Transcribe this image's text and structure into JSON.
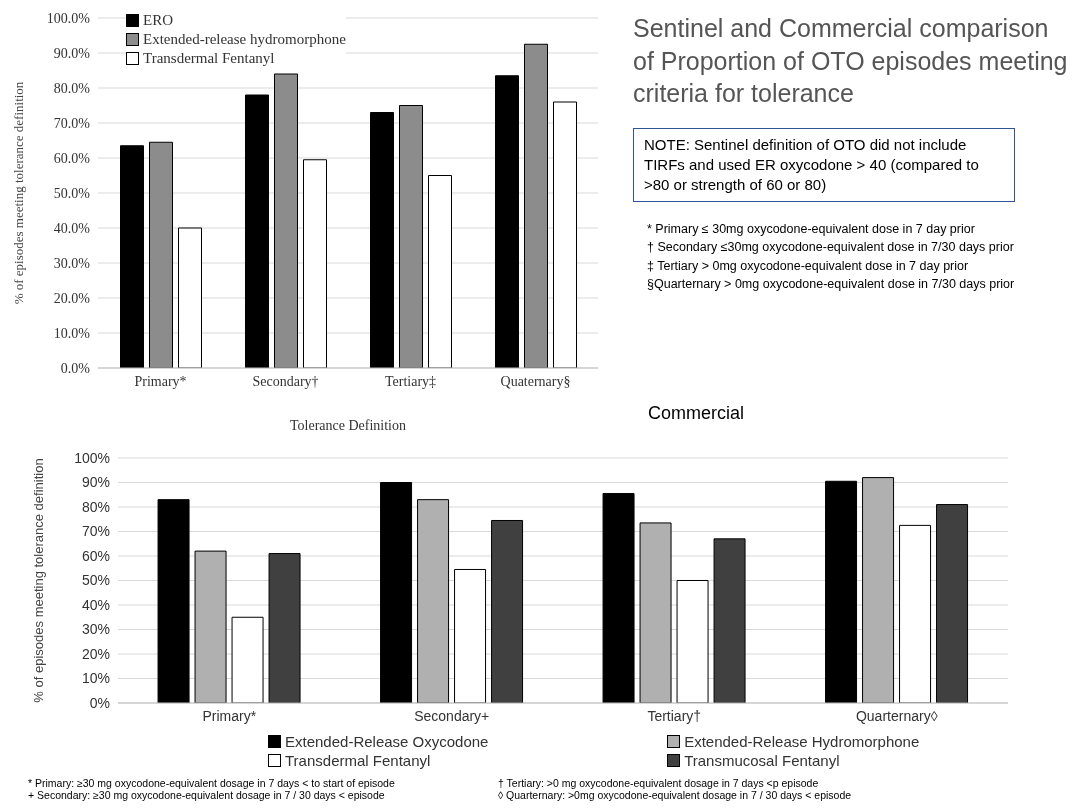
{
  "chart_data": [
    {
      "type": "bar",
      "xlabel": "Tolerance Definition",
      "ylabel": "% of episodes meeting tolerance definition",
      "categories": [
        "Primary*",
        "Secondary†",
        "Tertiary‡",
        "Quaternary§"
      ],
      "series": [
        {
          "name": "ERO",
          "color": "#000000",
          "values": [
            63.5,
            78,
            73,
            83.5
          ]
        },
        {
          "name": "Extended-release hydromorphone",
          "color": "#8c8c8c",
          "values": [
            64.5,
            84,
            75,
            92.5
          ]
        },
        {
          "name": "Transdermal Fentanyl",
          "color": "#ffffff",
          "values": [
            40,
            59.5,
            55,
            76
          ]
        }
      ],
      "ylim": [
        0,
        100
      ],
      "yticks": [
        {
          "value": 0,
          "label": "0.0%"
        },
        {
          "value": 10,
          "label": "10.0%"
        },
        {
          "value": 20,
          "label": "20.0%"
        },
        {
          "value": 30,
          "label": "30.0%"
        },
        {
          "value": 40,
          "label": "40.0%"
        },
        {
          "value": 50,
          "label": "50.0%"
        },
        {
          "value": 60,
          "label": "60.0%"
        },
        {
          "value": 70,
          "label": "70.0%"
        },
        {
          "value": 80,
          "label": "80.0%"
        },
        {
          "value": 90,
          "label": "90.0%"
        },
        {
          "value": 100,
          "label": "100.0%"
        }
      ],
      "grid": "y",
      "legend": "top left",
      "annotations": [
        "Sentinel and Commercial comparison of Proportion of OTO episodes meeting criteria for tolerance",
        "NOTE: Sentinel definition of OTO did not include TIRFs and used ER oxycodone > 40 (compared to >80 or strength of 60 or 80)",
        "* Primary ≤ 30mg oxycodone-equivalent dose in 7 day prior",
        "† Secondary ≤30mg oxycodone-equivalent dose in 7/30 days prior",
        "‡ Tertiary > 0mg oxycodone-equivalent dose  in 7 day prior",
        "§Quarternary > 0mg oxycodone-equivalent dose in 7/30 days prior"
      ]
    },
    {
      "type": "bar",
      "title": "Commercial",
      "ylabel": "% of episodes meeting tolerance definition",
      "categories": [
        "Primary*",
        "Secondary+",
        "Tertiary†",
        "Quarternary◊"
      ],
      "series": [
        {
          "name": "Extended-Release Oxycodone",
          "color": "#000000",
          "values": [
            83,
            90,
            85.5,
            90.5
          ]
        },
        {
          "name": "Extended-Release Hydromorphone",
          "color": "#b0b0b0",
          "values": [
            62,
            83,
            73.5,
            92
          ]
        },
        {
          "name": "Transdermal Fentanyl",
          "color": "#ffffff",
          "values": [
            35,
            54.5,
            50,
            72.5
          ]
        },
        {
          "name": "Transmucosal Fentanyl",
          "color": "#404040",
          "values": [
            61,
            74.5,
            67,
            81
          ]
        }
      ],
      "ylim": [
        0,
        100
      ],
      "yticks": [
        {
          "value": 0,
          "label": "0%"
        },
        {
          "value": 10,
          "label": "10%"
        },
        {
          "value": 20,
          "label": "20%"
        },
        {
          "value": 30,
          "label": "30%"
        },
        {
          "value": 40,
          "label": "40%"
        },
        {
          "value": 50,
          "label": "50%"
        },
        {
          "value": 60,
          "label": "60%"
        },
        {
          "value": 70,
          "label": "70%"
        },
        {
          "value": 80,
          "label": "80%"
        },
        {
          "value": 90,
          "label": "90%"
        },
        {
          "value": 100,
          "label": "100%"
        }
      ],
      "grid": "y",
      "legend": "bottom",
      "annotations": [
        "* Primary: ≥30 mg oxycodone-equivalent dosage in 7 days < to start of episode",
        "+ Secondary: ≥30 mg oxycodone-equivalent dosage in 7 / 30 days < episode",
        "† Tertiary: >0 mg oxycodone-equivalent dosage in 7 days <p episode",
        "◊ Quarternary: >0mg oxycodone-equivalent dosage in 7 / 30 days < episode"
      ]
    }
  ]
}
